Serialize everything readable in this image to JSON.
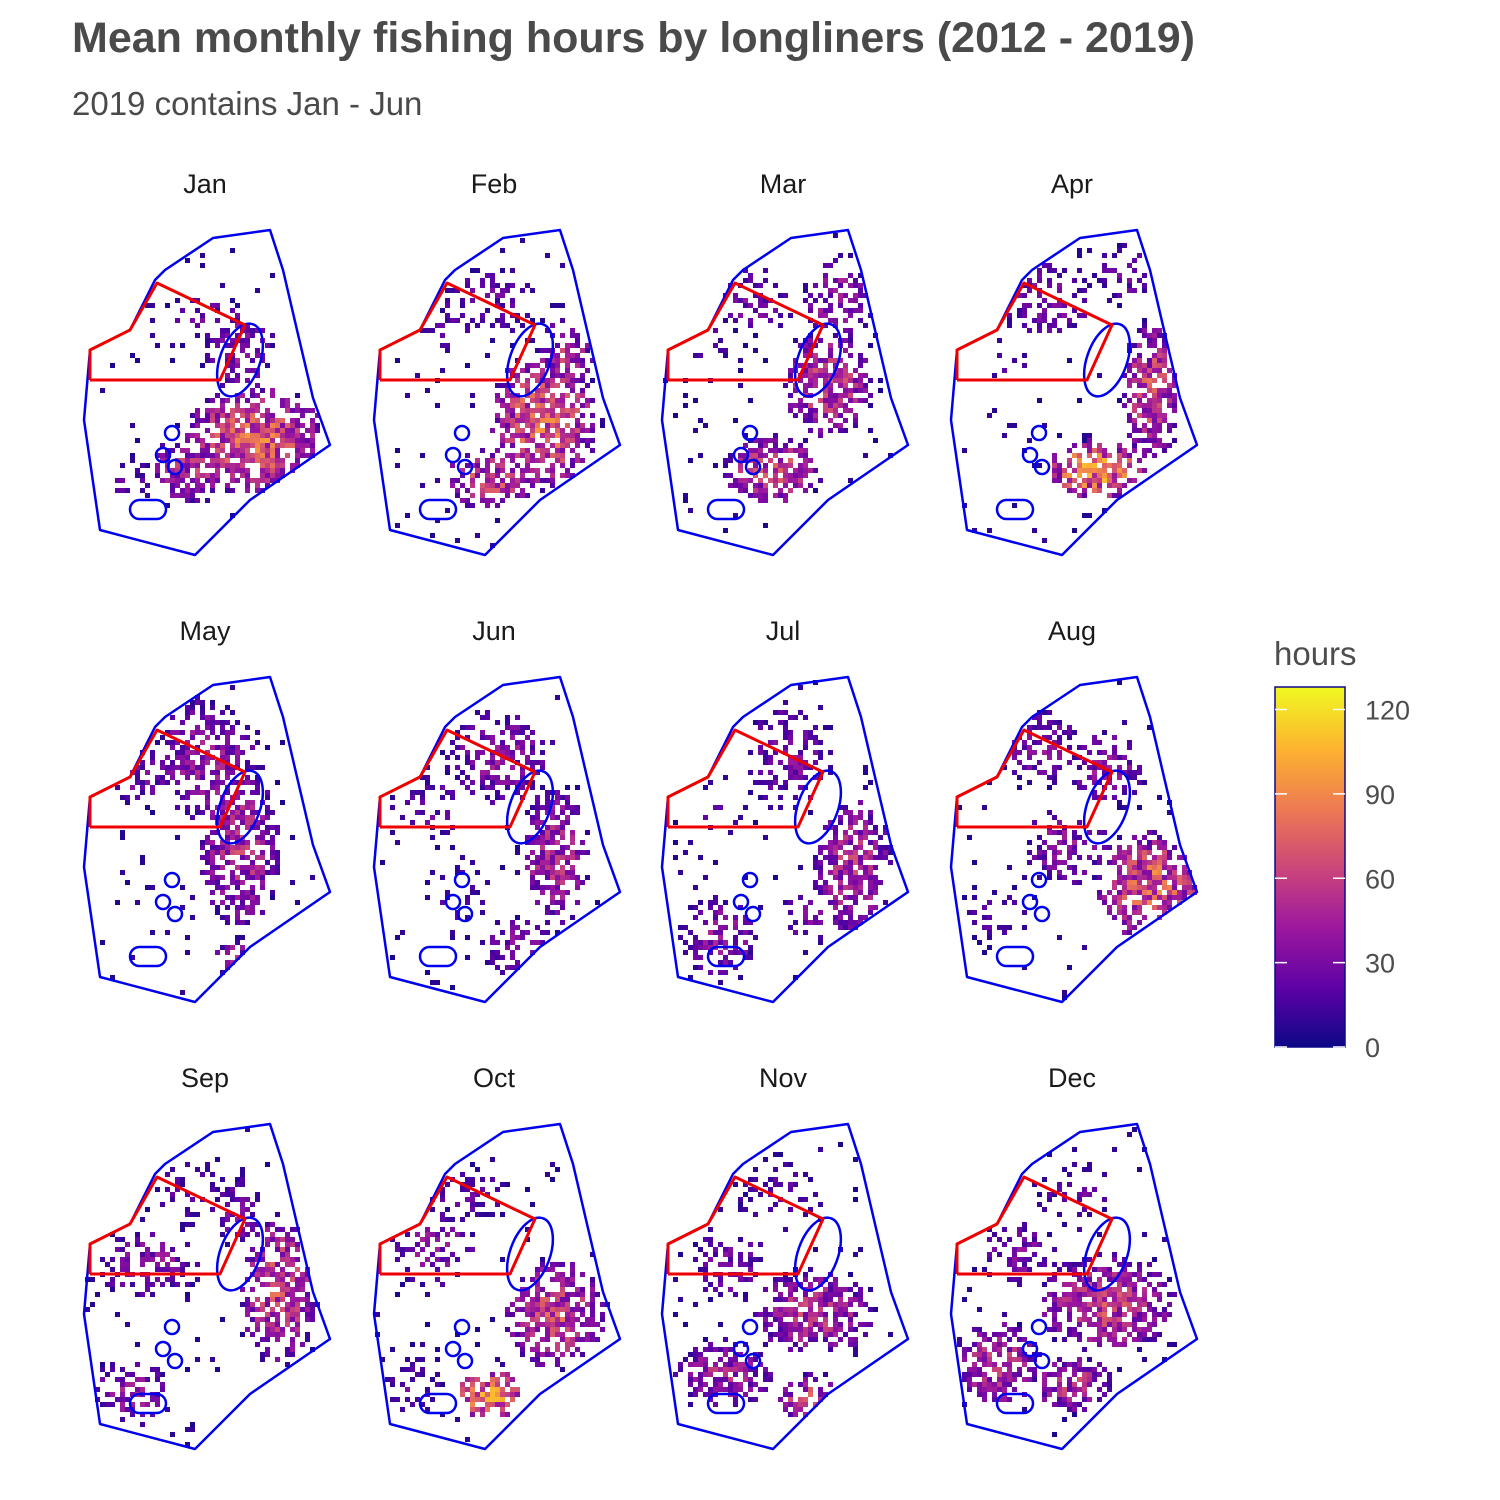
{
  "title": "Mean monthly fishing hours by longliners (2012 - 2019)",
  "subtitle": "2019 contains Jan - Jun",
  "colors": {
    "eez_boundary": "#0000ee",
    "closed_area_boundary": "#ee0000",
    "colormap": [
      "#0d0887",
      "#5c01a6",
      "#9c179e",
      "#cc4778",
      "#ed7953",
      "#fdb42f",
      "#f0f921"
    ]
  },
  "legend": {
    "title": "hours",
    "ticks": [
      0,
      30,
      60,
      90,
      120
    ],
    "tick_labels": [
      "0",
      "30",
      "60",
      "90",
      "120"
    ],
    "range": [
      0,
      128
    ]
  },
  "chart_data": {
    "type": "heatmap",
    "facets": [
      "Jan",
      "Feb",
      "Mar",
      "Apr",
      "May",
      "Jun",
      "Jul",
      "Aug",
      "Sep",
      "Oct",
      "Nov",
      "Dec"
    ]
  }
}
